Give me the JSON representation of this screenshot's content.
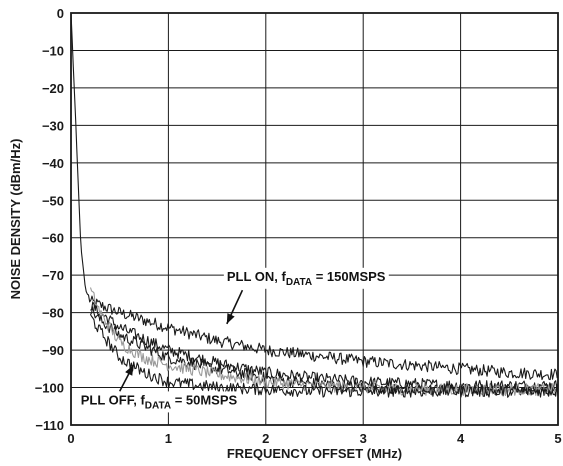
{
  "chart_data": {
    "type": "line",
    "title": "",
    "xlabel": "FREQUENCY OFFSET (MHz)",
    "ylabel": "NOISE DENSITY (dBm/Hz)",
    "xlim": [
      0,
      5
    ],
    "ylim": [
      -110,
      0
    ],
    "x_ticks": [
      "0",
      "1",
      "2",
      "3",
      "4",
      "5"
    ],
    "y_ticks": [
      "0",
      "−10",
      "−20",
      "−30",
      "−40",
      "−50",
      "−60",
      "−70",
      "−80",
      "−90",
      "−100",
      "−110"
    ],
    "grid": true,
    "series": [
      {
        "color": "#1a1a1a",
        "x": [
          0,
          0.05,
          0.1,
          0.15,
          0.2,
          0.3,
          0.5,
          0.75,
          1.0,
          1.5,
          2.0,
          2.5,
          3.0,
          3.5,
          4.0,
          4.5,
          5.0
        ],
        "values": [
          0,
          -30,
          -62,
          -74,
          -77,
          -78,
          -80,
          -82,
          -84,
          -87.5,
          -90,
          -91.5,
          -93,
          -94,
          -95,
          -96,
          -96.5
        ]
      },
      {
        "color": "#1a1a1a",
        "x": [
          0.2,
          0.3,
          0.5,
          0.75,
          1.0,
          1.5,
          2.0,
          2.5,
          3.0,
          3.5,
          4.0,
          4.5,
          5.0
        ],
        "values": [
          -78,
          -80,
          -84,
          -87,
          -90,
          -93.5,
          -96,
          -97.5,
          -98.5,
          -99,
          -99.5,
          -99.5,
          -99.5
        ]
      },
      {
        "color": "#1a1a1a",
        "x": [
          0.2,
          0.3,
          0.5,
          0.75,
          1.0,
          1.5,
          2.0,
          2.5,
          3.0,
          3.5,
          4.0,
          4.5,
          5.0
        ],
        "values": [
          -79,
          -82,
          -86,
          -89,
          -92,
          -95,
          -97.5,
          -99,
          -100,
          -100.5,
          -100.5,
          -100.5,
          -100.5
        ]
      },
      {
        "color": "#999999",
        "x": [
          0.2,
          0.3,
          0.5,
          0.75,
          1.0,
          1.5,
          2.0,
          2.5,
          3.0,
          3.5,
          4.0,
          4.5,
          5.0
        ],
        "values": [
          -74,
          -80,
          -88,
          -92,
          -94,
          -96.5,
          -98.5,
          -99.5,
          -100,
          -100.5,
          -100.5,
          -100.5,
          -100.5
        ]
      },
      {
        "color": "#1a1a1a",
        "x": [
          0.2,
          0.3,
          0.5,
          0.75,
          1.0,
          1.5,
          2.0,
          2.5,
          3.0,
          3.5,
          4.0,
          4.5,
          5.0
        ],
        "values": [
          -81,
          -85,
          -92,
          -96,
          -98.5,
          -100,
          -100.5,
          -101,
          -101,
          -101,
          -101,
          -101,
          -101
        ]
      }
    ],
    "annotations": [
      {
        "main": "PLL ON, f",
        "sub": "DATA",
        "rest": " = 150MSPS",
        "x": 1.6,
        "y": -71.5,
        "arrow_from": [
          1.76,
          -74
        ],
        "arrow_to": [
          1.6,
          -83
        ]
      },
      {
        "main": "PLL OFF, f",
        "sub": "DATA",
        "rest": " = 50MSPS",
        "x": 0.1,
        "y": -104.5,
        "arrow_from": [
          0.5,
          -101
        ],
        "arrow_to": [
          0.64,
          -94
        ]
      }
    ]
  }
}
